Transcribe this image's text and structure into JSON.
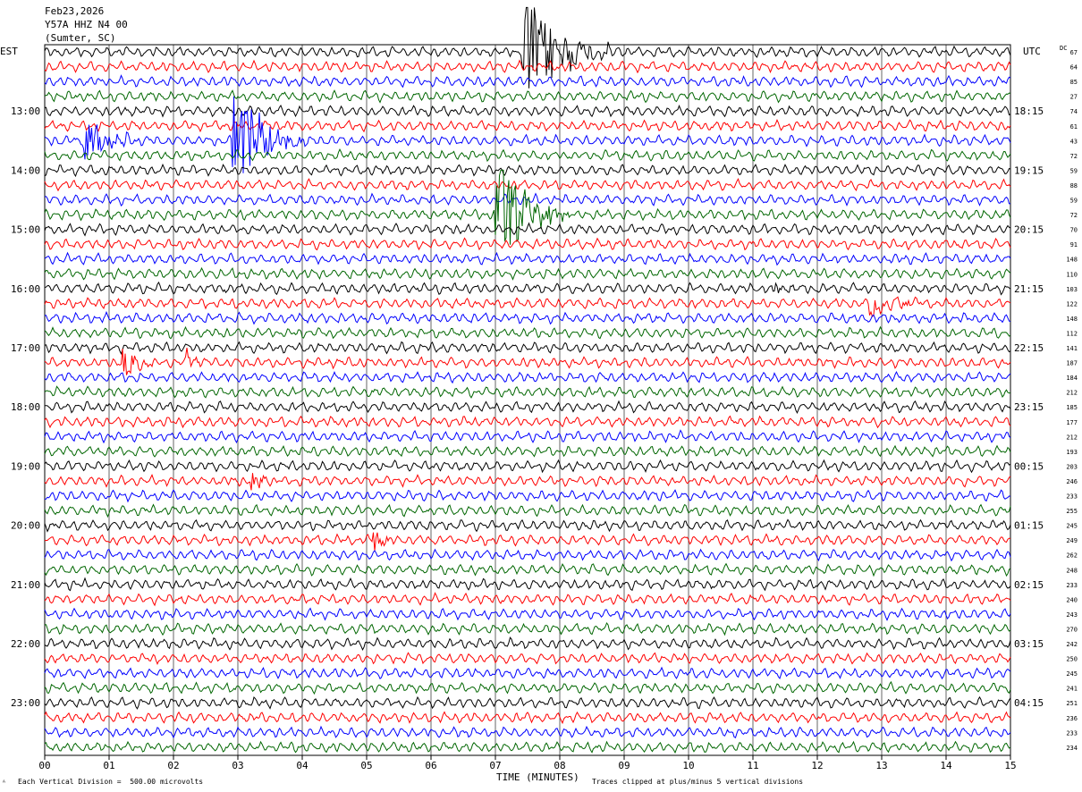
{
  "header": {
    "date": "Feb23,2026",
    "station": "Y57A HHZ N4 00",
    "location": "(Sumter, SC)",
    "tz_left": "EST",
    "tz_right": "UTC",
    "dc_label": "DC"
  },
  "footer": {
    "mark": "ᴬ",
    "scale": "Each Vertical Division =  500.00 microvolts",
    "clip": "Traces clipped at plus/minus 5 vertical divisions"
  },
  "colors": {
    "trace_cycle": [
      "#000000",
      "#ff0000",
      "#0000ff",
      "#006600"
    ],
    "grid": "#000000",
    "background": "#ffffff"
  },
  "chart_data": {
    "type": "line",
    "title": "",
    "xlabel": "TIME (MINUTES)",
    "ylabel": "",
    "xlim": [
      0,
      15
    ],
    "x_ticks": [
      "00",
      "01",
      "02",
      "03",
      "04",
      "05",
      "06",
      "07",
      "08",
      "09",
      "10",
      "11",
      "12",
      "13",
      "14",
      "15"
    ],
    "left_hour_labels": [
      "13:00",
      "14:00",
      "15:00",
      "16:00",
      "17:00",
      "18:00",
      "19:00",
      "20:00",
      "21:00",
      "22:00",
      "23:00"
    ],
    "right_hour_labels": [
      "18:15",
      "19:15",
      "20:15",
      "21:15",
      "22:15",
      "23:15",
      "00:15",
      "01:15",
      "02:15",
      "03:15",
      "04:15"
    ],
    "trace_count": 48,
    "traces_per_hour": 4,
    "dc_offsets": [
      "67",
      "64",
      "85",
      "27",
      "74",
      "61",
      "43",
      "72",
      "59",
      "88",
      "59",
      "72",
      "70",
      "91",
      "148",
      "110",
      "103",
      "122",
      "148",
      "112",
      "141",
      "187",
      "184",
      "212",
      "185",
      "177",
      "212",
      "193",
      "203",
      "246",
      "233",
      "255",
      "245",
      "249",
      "262",
      "248",
      "233",
      "240",
      "243",
      "270",
      "242",
      "250",
      "245",
      "241",
      "251",
      "236",
      "233",
      "234"
    ],
    "events": [
      {
        "trace": 0,
        "start_min": 7.4,
        "duration_min": 1.6,
        "amplitude": 5
      },
      {
        "trace": 6,
        "start_min": 0.6,
        "duration_min": 1.0,
        "amplitude": 2
      },
      {
        "trace": 6,
        "start_min": 2.9,
        "duration_min": 1.2,
        "amplitude": 5
      },
      {
        "trace": 11,
        "start_min": 7.0,
        "duration_min": 1.2,
        "amplitude": 5
      },
      {
        "trace": 16,
        "start_min": 11.3,
        "duration_min": 0.4,
        "amplitude": 1.2
      },
      {
        "trace": 17,
        "start_min": 12.8,
        "duration_min": 0.9,
        "amplitude": 1.5
      },
      {
        "trace": 21,
        "start_min": 1.2,
        "duration_min": 0.6,
        "amplitude": 1.5
      },
      {
        "trace": 21,
        "start_min": 2.2,
        "duration_min": 0.3,
        "amplitude": 1.2
      },
      {
        "trace": 29,
        "start_min": 3.2,
        "duration_min": 0.6,
        "amplitude": 1.0
      },
      {
        "trace": 33,
        "start_min": 5.1,
        "duration_min": 0.4,
        "amplitude": 1.2
      }
    ]
  }
}
